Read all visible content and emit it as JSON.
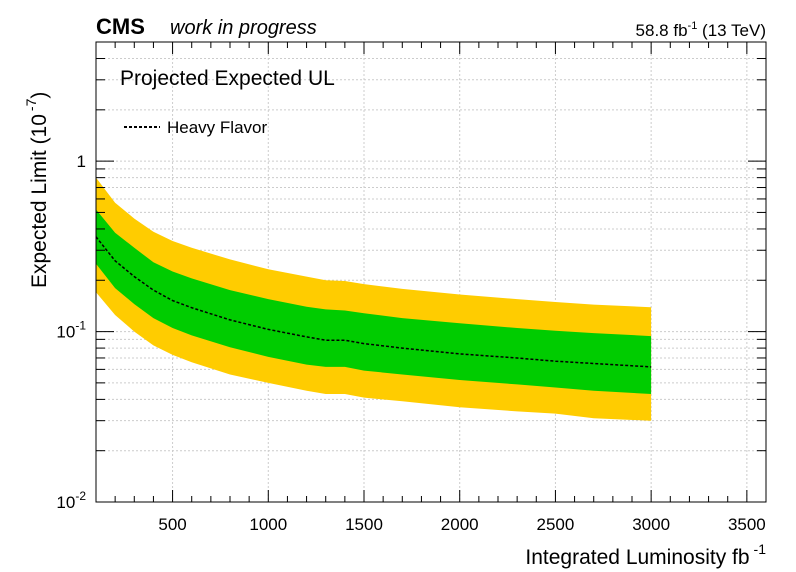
{
  "header": {
    "experiment": "CMS",
    "status": "work in progress",
    "lumi_value": "58.8 fb",
    "lumi_exp": "-1",
    "energy": "(13 TeV)"
  },
  "colors": {
    "band_2sigma": "#ffcc00",
    "band_1sigma": "#00cc00",
    "median_line": "#000000",
    "grid": "#cccccc"
  },
  "chart_data": {
    "type": "area",
    "title": "Projected Expected UL",
    "xlabel": "Integrated Luminosity fb",
    "xlabel_exp": "-1",
    "ylabel": "Expected Limit (10",
    "ylabel_exp": "-7",
    "xlim": [
      100,
      3600
    ],
    "ylim": [
      0.01,
      5
    ],
    "yscale": "log",
    "grid": true,
    "legend_position": "top-left",
    "x_ticks": [
      {
        "value": 500,
        "label": "500"
      },
      {
        "value": 1000,
        "label": "1000"
      },
      {
        "value": 1500,
        "label": "1500"
      },
      {
        "value": 2000,
        "label": "2000"
      },
      {
        "value": 2500,
        "label": "2500"
      },
      {
        "value": 3000,
        "label": "3000"
      },
      {
        "value": 3500,
        "label": "3500"
      }
    ],
    "y_ticks": [
      {
        "value": 0.01,
        "base": "10",
        "exp": "-2"
      },
      {
        "value": 0.1,
        "base": "10",
        "exp": "-1"
      },
      {
        "value": 1,
        "base": "1",
        "exp": ""
      }
    ],
    "x": [
      100,
      200,
      300,
      400,
      500,
      600,
      800,
      1000,
      1200,
      1300,
      1400,
      1500,
      1700,
      2000,
      2300,
      2500,
      2700,
      3000
    ],
    "median": [
      0.36,
      0.26,
      0.21,
      0.175,
      0.152,
      0.138,
      0.117,
      0.103,
      0.093,
      0.089,
      0.089,
      0.085,
      0.08,
      0.074,
      0.07,
      0.067,
      0.065,
      0.062
    ],
    "band_1sigma_high": [
      0.52,
      0.38,
      0.31,
      0.255,
      0.225,
      0.205,
      0.175,
      0.155,
      0.14,
      0.135,
      0.133,
      0.128,
      0.12,
      0.112,
      0.105,
      0.101,
      0.098,
      0.094
    ],
    "band_1sigma_low": [
      0.25,
      0.18,
      0.145,
      0.12,
      0.105,
      0.095,
      0.081,
      0.071,
      0.064,
      0.062,
      0.062,
      0.059,
      0.056,
      0.052,
      0.049,
      0.047,
      0.045,
      0.043
    ],
    "band_2sigma_high": [
      0.8,
      0.57,
      0.46,
      0.385,
      0.34,
      0.31,
      0.265,
      0.232,
      0.21,
      0.2,
      0.198,
      0.19,
      0.178,
      0.165,
      0.155,
      0.149,
      0.144,
      0.139
    ],
    "band_2sigma_low": [
      0.17,
      0.125,
      0.1,
      0.083,
      0.073,
      0.066,
      0.056,
      0.05,
      0.045,
      0.043,
      0.043,
      0.041,
      0.039,
      0.036,
      0.034,
      0.033,
      0.031,
      0.03
    ],
    "series": [
      {
        "name": "Heavy Flavor"
      }
    ]
  }
}
